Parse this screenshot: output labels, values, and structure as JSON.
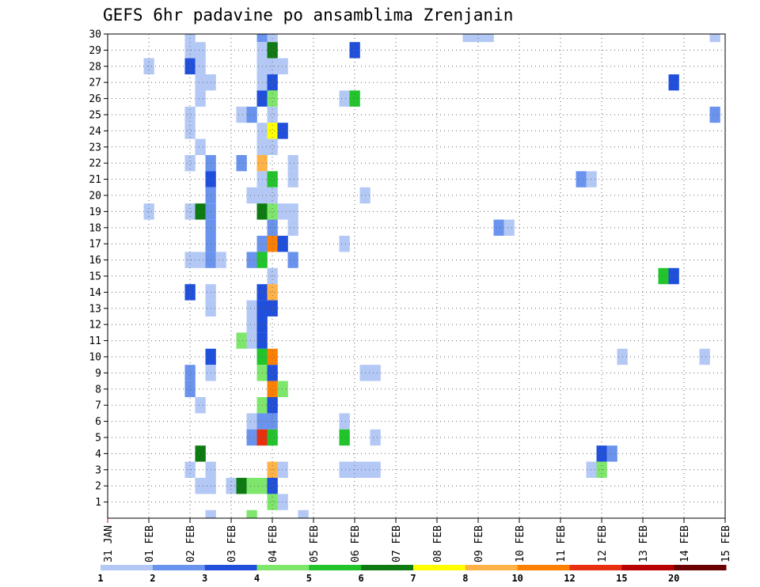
{
  "chart_data": {
    "type": "heatmap",
    "title": "GEFS 6hr padavine po ansamblima Zrenjanin",
    "xlabel": "",
    "ylabel": "",
    "grid": true,
    "x_ticks": [
      "31 JAN",
      "01 FEB",
      "02 FEB",
      "03 FEB",
      "04 FEB",
      "05 FEB",
      "06 FEB",
      "07 FEB",
      "08 FEB",
      "09 FEB",
      "10 FEB",
      "11 FEB",
      "12 FEB",
      "13 FEB",
      "14 FEB",
      "15 FEB"
    ],
    "x_range_days": [
      0,
      15
    ],
    "y_ticks": [
      1,
      2,
      3,
      4,
      5,
      6,
      7,
      8,
      9,
      10,
      11,
      12,
      13,
      14,
      15,
      16,
      17,
      18,
      19,
      20,
      21,
      22,
      23,
      24,
      25,
      26,
      27,
      28,
      29,
      30
    ],
    "y_range": [
      0,
      30
    ],
    "colorbar": {
      "labels": [
        "1",
        "2",
        "3",
        "4",
        "5",
        "6",
        "7",
        "8",
        "10",
        "12",
        "15",
        "20"
      ],
      "colors": [
        "#b3c8f5",
        "#6a93ee",
        "#1f4fdb",
        "#7de66b",
        "#21c42a",
        "#0d7a12",
        "#ffff00",
        "#ffb347",
        "#ff8000",
        "#e83010",
        "#b80000",
        "#6b0000"
      ]
    },
    "cells": [
      [
        2.0,
        30,
        1
      ],
      [
        3.75,
        30,
        2
      ],
      [
        4.0,
        30,
        1
      ],
      [
        8.75,
        30,
        1
      ],
      [
        9.0,
        30,
        1
      ],
      [
        9.25,
        30,
        1
      ],
      [
        14.75,
        30,
        1
      ],
      [
        2.0,
        29,
        1
      ],
      [
        2.25,
        29,
        1
      ],
      [
        3.75,
        29,
        1
      ],
      [
        4.0,
        29,
        6
      ],
      [
        6.0,
        29,
        3
      ],
      [
        1.0,
        28,
        1
      ],
      [
        2.0,
        28,
        3
      ],
      [
        2.25,
        28,
        1
      ],
      [
        3.75,
        28,
        1
      ],
      [
        4.0,
        28,
        1
      ],
      [
        4.25,
        28,
        1
      ],
      [
        2.25,
        27,
        1
      ],
      [
        2.5,
        27,
        1
      ],
      [
        3.75,
        27,
        1
      ],
      [
        4.0,
        27,
        3
      ],
      [
        13.75,
        27,
        3
      ],
      [
        2.25,
        26,
        1
      ],
      [
        3.75,
        26,
        3
      ],
      [
        4.0,
        26,
        4
      ],
      [
        5.75,
        26,
        1
      ],
      [
        6.0,
        26,
        5
      ],
      [
        2.0,
        25,
        1
      ],
      [
        3.25,
        25,
        1
      ],
      [
        3.5,
        25,
        2
      ],
      [
        4.0,
        25,
        1
      ],
      [
        14.75,
        25,
        2
      ],
      [
        2.0,
        24,
        1
      ],
      [
        3.75,
        24,
        1
      ],
      [
        4.0,
        24,
        7
      ],
      [
        4.25,
        24,
        3
      ],
      [
        2.25,
        23,
        1
      ],
      [
        3.75,
        23,
        1
      ],
      [
        4.0,
        23,
        1
      ],
      [
        2.0,
        22,
        1
      ],
      [
        2.5,
        22,
        2
      ],
      [
        3.25,
        22,
        2
      ],
      [
        3.75,
        22,
        8
      ],
      [
        4.5,
        22,
        1
      ],
      [
        2.5,
        21,
        3
      ],
      [
        3.75,
        21,
        1
      ],
      [
        4.0,
        21,
        5
      ],
      [
        4.5,
        21,
        1
      ],
      [
        11.5,
        21,
        2
      ],
      [
        11.75,
        21,
        1
      ],
      [
        2.5,
        20,
        2
      ],
      [
        3.5,
        20,
        1
      ],
      [
        3.75,
        20,
        1
      ],
      [
        4.0,
        20,
        1
      ],
      [
        6.25,
        20,
        1
      ],
      [
        1.0,
        19,
        1
      ],
      [
        2.0,
        19,
        1
      ],
      [
        2.25,
        19,
        6
      ],
      [
        2.5,
        19,
        2
      ],
      [
        3.75,
        19,
        6
      ],
      [
        4.0,
        19,
        4
      ],
      [
        4.25,
        19,
        1
      ],
      [
        4.5,
        19,
        1
      ],
      [
        2.5,
        18,
        2
      ],
      [
        4.0,
        18,
        2
      ],
      [
        4.5,
        18,
        1
      ],
      [
        9.5,
        18,
        2
      ],
      [
        9.75,
        18,
        1
      ],
      [
        2.5,
        17,
        2
      ],
      [
        3.75,
        17,
        2
      ],
      [
        4.0,
        17,
        9
      ],
      [
        4.25,
        17,
        3
      ],
      [
        5.75,
        17,
        1
      ],
      [
        2.0,
        16,
        1
      ],
      [
        2.25,
        16,
        1
      ],
      [
        2.5,
        16,
        2
      ],
      [
        2.75,
        16,
        1
      ],
      [
        3.5,
        16,
        2
      ],
      [
        3.75,
        16,
        5
      ],
      [
        4.5,
        16,
        2
      ],
      [
        4.0,
        15,
        1
      ],
      [
        13.5,
        15,
        5
      ],
      [
        13.75,
        15,
        3
      ],
      [
        2.0,
        14,
        3
      ],
      [
        2.5,
        14,
        1
      ],
      [
        3.75,
        14,
        3
      ],
      [
        4.0,
        14,
        8
      ],
      [
        2.5,
        13,
        1
      ],
      [
        3.5,
        13,
        1
      ],
      [
        3.75,
        13,
        3
      ],
      [
        4.0,
        13,
        3
      ],
      [
        3.5,
        12,
        1
      ],
      [
        3.75,
        12,
        3
      ],
      [
        3.25,
        11,
        4
      ],
      [
        3.5,
        11,
        1
      ],
      [
        3.75,
        11,
        3
      ],
      [
        2.5,
        10,
        3
      ],
      [
        3.75,
        10,
        5
      ],
      [
        4.0,
        10,
        9
      ],
      [
        12.5,
        10,
        1
      ],
      [
        14.5,
        10,
        1
      ],
      [
        2.0,
        9,
        2
      ],
      [
        2.5,
        9,
        1
      ],
      [
        3.75,
        9,
        4
      ],
      [
        4.0,
        9,
        3
      ],
      [
        6.25,
        9,
        1
      ],
      [
        6.5,
        9,
        1
      ],
      [
        2.0,
        8,
        2
      ],
      [
        4.0,
        8,
        9
      ],
      [
        4.25,
        8,
        4
      ],
      [
        2.25,
        7,
        1
      ],
      [
        3.75,
        7,
        4
      ],
      [
        4.0,
        7,
        3
      ],
      [
        3.5,
        6,
        1
      ],
      [
        3.75,
        6,
        2
      ],
      [
        4.0,
        6,
        2
      ],
      [
        5.75,
        6,
        1
      ],
      [
        3.5,
        5,
        2
      ],
      [
        3.75,
        5,
        10
      ],
      [
        4.0,
        5,
        5
      ],
      [
        5.75,
        5,
        5
      ],
      [
        6.5,
        5,
        1
      ],
      [
        2.25,
        4,
        6
      ],
      [
        12.0,
        4,
        3
      ],
      [
        12.25,
        4,
        2
      ],
      [
        2.0,
        3,
        1
      ],
      [
        2.5,
        3,
        1
      ],
      [
        4.0,
        3,
        8
      ],
      [
        4.25,
        3,
        1
      ],
      [
        5.75,
        3,
        1
      ],
      [
        6.0,
        3,
        1
      ],
      [
        6.25,
        3,
        1
      ],
      [
        6.5,
        3,
        1
      ],
      [
        11.75,
        3,
        1
      ],
      [
        12.0,
        3,
        4
      ],
      [
        2.25,
        2,
        1
      ],
      [
        2.5,
        2,
        1
      ],
      [
        3.0,
        2,
        1
      ],
      [
        3.25,
        2,
        6
      ],
      [
        3.5,
        2,
        4
      ],
      [
        3.75,
        2,
        4
      ],
      [
        4.0,
        2,
        3
      ],
      [
        4.0,
        1,
        4
      ],
      [
        4.25,
        1,
        1
      ],
      [
        2.5,
        0,
        1
      ],
      [
        3.5,
        0,
        4
      ],
      [
        4.75,
        0,
        1
      ]
    ]
  }
}
